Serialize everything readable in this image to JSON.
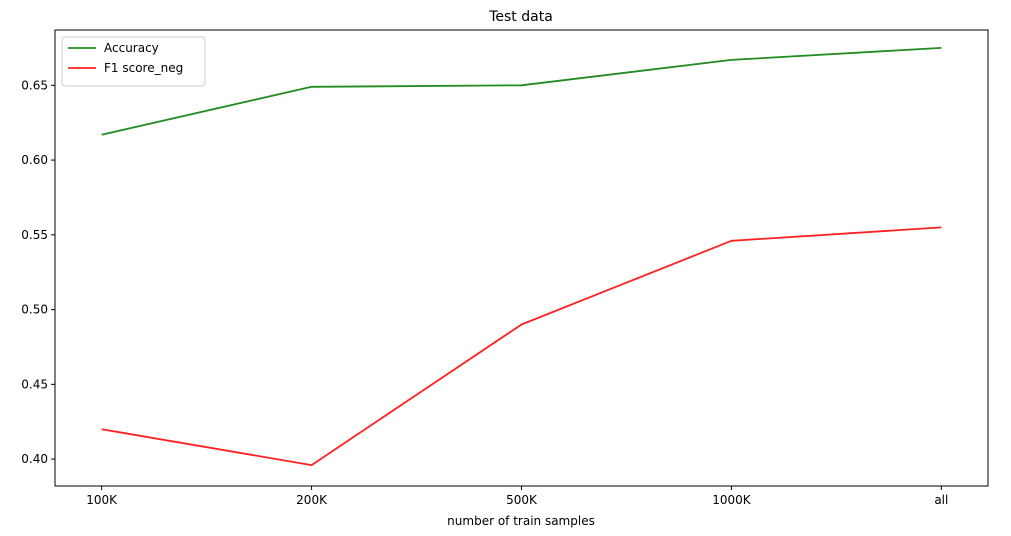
{
  "chart_data": {
    "type": "line",
    "title": "Test data",
    "xlabel": "number of train samples",
    "ylabel": "",
    "categories": [
      "100K",
      "200K",
      "500K",
      "1000K",
      "all"
    ],
    "ylim": [
      0.382,
      0.687
    ],
    "yticks": [
      0.4,
      0.45,
      0.5,
      0.55,
      0.6,
      0.65
    ],
    "grid": false,
    "legend_position": "top-left",
    "series": [
      {
        "name": "Accuracy",
        "color": "#228b22",
        "values": [
          0.617,
          0.649,
          0.65,
          0.667,
          0.675
        ]
      },
      {
        "name": "F1 score_neg",
        "color": "#ff2020",
        "values": [
          0.42,
          0.396,
          0.49,
          0.546,
          0.555
        ]
      }
    ]
  }
}
